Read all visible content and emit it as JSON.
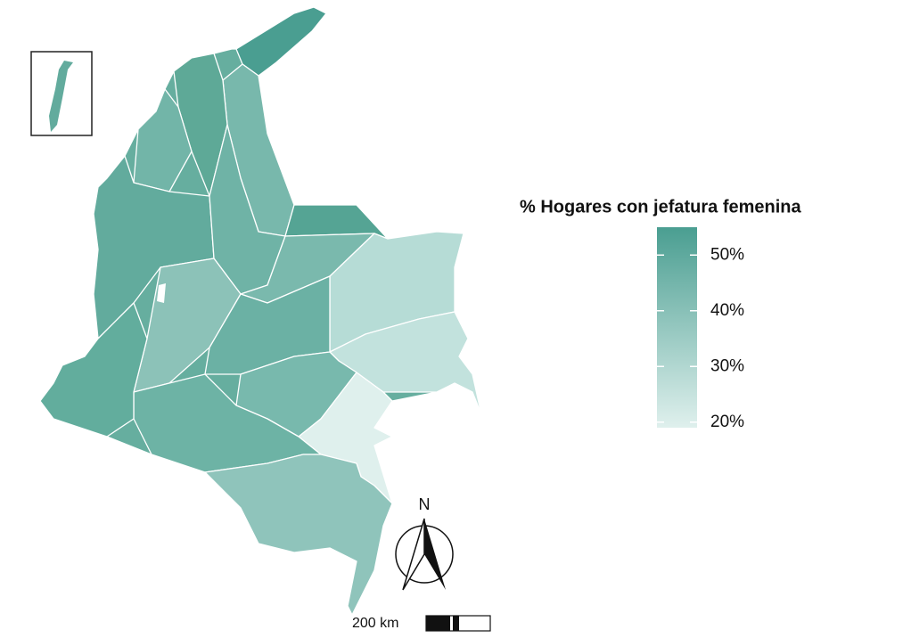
{
  "legend": {
    "title": "% Hogares con jefatura femenina",
    "ticks": [
      {
        "value": 50,
        "label": "50%"
      },
      {
        "value": 40,
        "label": "40%"
      },
      {
        "value": 30,
        "label": "30%"
      },
      {
        "value": 20,
        "label": "20%"
      }
    ],
    "range": [
      19,
      55
    ],
    "colors": [
      "#dff0ed",
      "#4a9e91"
    ]
  },
  "north_label": "N",
  "scale_label": "200 km"
}
